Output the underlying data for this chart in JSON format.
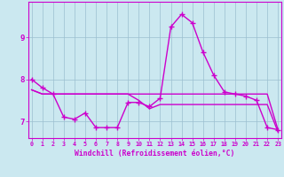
{
  "xlabel": "Windchill (Refroidissement éolien,°C)",
  "bg_color": "#cbe8f0",
  "line_color": "#cc00cc",
  "grid_color": "#9bbfcf",
  "hours": [
    0,
    1,
    2,
    3,
    4,
    5,
    6,
    7,
    8,
    9,
    10,
    11,
    12,
    13,
    14,
    15,
    16,
    17,
    18,
    19,
    20,
    21,
    22,
    23
  ],
  "line_main": [
    8.0,
    7.8,
    7.65,
    7.1,
    7.05,
    7.2,
    6.85,
    6.85,
    6.85,
    7.45,
    7.45,
    7.35,
    7.55,
    9.25,
    9.55,
    9.35,
    8.65,
    8.1,
    7.7,
    7.65,
    7.6,
    7.5,
    6.85,
    6.8
  ],
  "line_upper": [
    7.75,
    7.65,
    7.65,
    7.65,
    7.65,
    7.65,
    7.65,
    7.65,
    7.65,
    7.65,
    7.65,
    7.65,
    7.65,
    7.65,
    7.65,
    7.65,
    7.65,
    7.65,
    7.65,
    7.65,
    7.65,
    7.65,
    7.65,
    6.8
  ],
  "line_lower": [
    7.75,
    7.65,
    7.65,
    7.65,
    7.65,
    7.65,
    7.65,
    7.65,
    7.65,
    7.65,
    7.5,
    7.3,
    7.4,
    7.4,
    7.4,
    7.4,
    7.4,
    7.4,
    7.4,
    7.4,
    7.4,
    7.4,
    7.4,
    6.75
  ],
  "ylim": [
    6.6,
    9.85
  ],
  "yticks": [
    7,
    8,
    9
  ],
  "xticks": [
    0,
    1,
    2,
    3,
    4,
    5,
    6,
    7,
    8,
    9,
    10,
    11,
    12,
    13,
    14,
    15,
    16,
    17,
    18,
    19,
    20,
    21,
    22,
    23
  ]
}
